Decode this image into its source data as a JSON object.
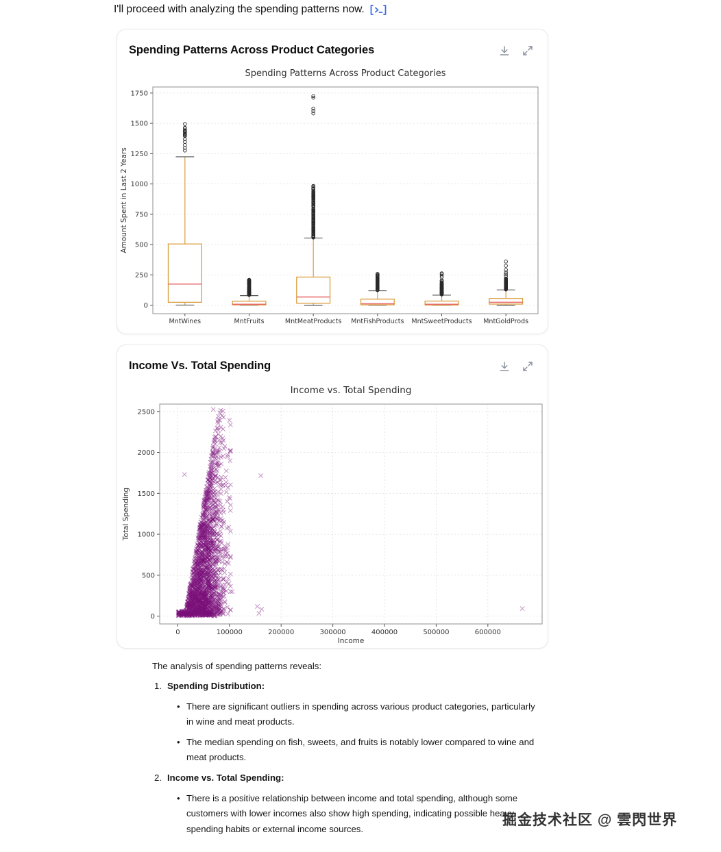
{
  "intro": {
    "text": "I'll proceed with analyzing the spending patterns now.",
    "icon": "code-reference-icon",
    "icon_color": "#3b6ef0"
  },
  "cards": [
    {
      "title": "Spending Patterns Across Product Categories",
      "icons": [
        "download-icon",
        "expand-icon"
      ]
    },
    {
      "title": "Income Vs. Total Spending",
      "icons": [
        "download-icon",
        "expand-icon"
      ]
    }
  ],
  "chart_data": [
    {
      "type": "boxplot",
      "title": "Spending Patterns Across Product Categories",
      "ylabel": "Amount Spent in Last 2 Years",
      "ylim": [
        -70,
        1800
      ],
      "yticks": [
        0,
        250,
        500,
        750,
        1000,
        1250,
        1500,
        1750
      ],
      "grid": true,
      "box_color": "#d99d3c",
      "median_color": "#e96a6a",
      "outlier_color": "#2a2a2a",
      "outlier_seed": 7,
      "categories": [
        "MntWines",
        "MntFruits",
        "MntMeatProducts",
        "MntFishProducts",
        "MntSweetProducts",
        "MntGoldProds"
      ],
      "boxes": [
        {
          "label": "MntWines",
          "whislo": 1,
          "q1": 24,
          "med": 174,
          "q3": 505,
          "whishi": 1224,
          "outliers": {
            "dense": [
              1396,
              1498,
              12
            ],
            "points": [
              1276,
              1298,
              1322,
              1347,
              1369,
              1462
            ]
          }
        },
        {
          "label": "MntFruits",
          "whislo": 0,
          "q1": 2,
          "med": 8,
          "q3": 33,
          "whishi": 79,
          "outliers": {
            "dense": [
              84,
              214,
              65
            ],
            "points": []
          }
        },
        {
          "label": "MntMeatProducts",
          "whislo": 0,
          "q1": 16,
          "med": 68,
          "q3": 232,
          "whishi": 554,
          "outliers": {
            "dense": [
              557,
              984,
              140
            ],
            "points": [
              1582,
              1602,
              1622,
              1712,
              1725
            ]
          }
        },
        {
          "label": "MntFishProducts",
          "whislo": 0,
          "q1": 3,
          "med": 12,
          "q3": 50,
          "whishi": 119,
          "outliers": {
            "dense": [
              124,
              259,
              60
            ],
            "points": []
          }
        },
        {
          "label": "MntSweetProducts",
          "whislo": 0,
          "q1": 1,
          "med": 8,
          "q3": 34,
          "whishi": 83,
          "outliers": {
            "dense": [
              88,
              210,
              55
            ],
            "points": [
              231,
              245,
              258,
              263
            ]
          }
        },
        {
          "label": "MntGoldProds",
          "whislo": 0,
          "q1": 9,
          "med": 24,
          "q3": 56,
          "whishi": 126,
          "outliers": {
            "dense": [
              130,
              224,
              48
            ],
            "points": [
              240,
              255,
              271,
              291,
              325,
              360
            ]
          }
        }
      ]
    },
    {
      "type": "scatter",
      "title": "Income vs. Total Spending",
      "xlabel": "Income",
      "ylabel": "Total Spending",
      "xlim": [
        -35000,
        705000
      ],
      "ylim": [
        -95,
        2590
      ],
      "xticks": [
        0,
        100000,
        200000,
        300000,
        400000,
        500000,
        600000
      ],
      "yticks": [
        0,
        500,
        1000,
        1500,
        2000,
        2500
      ],
      "grid": true,
      "marker": "x",
      "marker_color": "#7b0f7b",
      "marker_opacity": 0.45,
      "notable_points": [
        [
          666666,
          92
        ],
        [
          160803,
          1717
        ],
        [
          162397,
          85
        ],
        [
          157146,
          35
        ],
        [
          153924,
          118
        ],
        [
          105471,
          300
        ],
        [
          13000,
          1730
        ],
        [
          68600,
          2525
        ],
        [
          87600,
          2505
        ],
        [
          78500,
          2440
        ]
      ],
      "generated_cluster": {
        "count": 2000,
        "seed": 42,
        "income_mean": 52000,
        "income_sd": 20500,
        "income_min": 1700,
        "income_max": 102000,
        "cap_income_base": 14000,
        "cap_income_span": 66000,
        "spend_max": 2525,
        "spend_pow": 1.5,
        "spend_noise": 22
      }
    }
  ],
  "analysis": {
    "intro": "The analysis of spending patterns reveals:",
    "items": [
      {
        "num": "1.",
        "heading": "Spending Distribution:",
        "bullets": [
          "There are significant outliers in spending across various product categories, particularly in wine and meat products.",
          "The median spending on fish, sweets, and fruits is notably lower compared to wine and meat products."
        ]
      },
      {
        "num": "2.",
        "heading": "Income vs. Total Spending:",
        "bullets": [
          "There is a positive relationship between income and total spending, although some customers with lower incomes also show high spending, indicating possible heavy spending habits or external income sources."
        ]
      }
    ]
  },
  "watermark": "掘金技术社区 @ 雲閃世界",
  "colors": {
    "card_border": "#e7e8ea",
    "icon_gray": "#8a919c",
    "accent_blue": "#3b6ef0"
  }
}
